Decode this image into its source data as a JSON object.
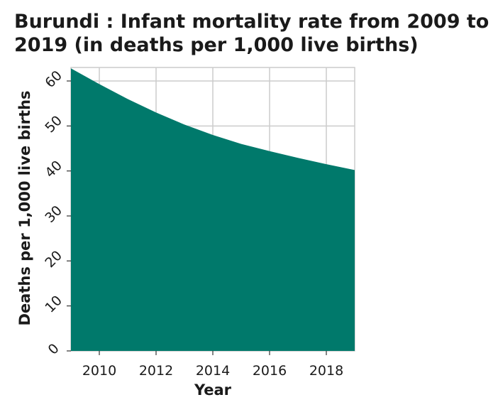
{
  "chart_data": {
    "type": "area",
    "title": "Burundi : Infant mortality rate from 2009 to 2019 (in deaths per 1,000 live births)",
    "xlabel": "Year",
    "ylabel": "Deaths per 1,000 live births",
    "x": [
      2009,
      2010,
      2011,
      2012,
      2013,
      2014,
      2015,
      2016,
      2017,
      2018,
      2019
    ],
    "values": [
      62.8,
      59.3,
      56.0,
      53.0,
      50.3,
      48.0,
      46.0,
      44.4,
      42.9,
      41.5,
      40.2
    ],
    "xlim": [
      2009,
      2019
    ],
    "ylim": [
      0,
      63
    ],
    "xticks": [
      2010,
      2012,
      2014,
      2016,
      2018
    ],
    "xtick_labels": [
      "2010",
      "2012",
      "2014",
      "2016",
      "2018"
    ],
    "yticks": [
      0,
      10,
      20,
      30,
      40,
      50,
      60
    ],
    "ytick_labels": [
      "0",
      "10",
      "20",
      "30",
      "40",
      "50",
      "60"
    ],
    "grid": true,
    "fill_color": "#00796b",
    "grid_color": "#cccccc"
  }
}
